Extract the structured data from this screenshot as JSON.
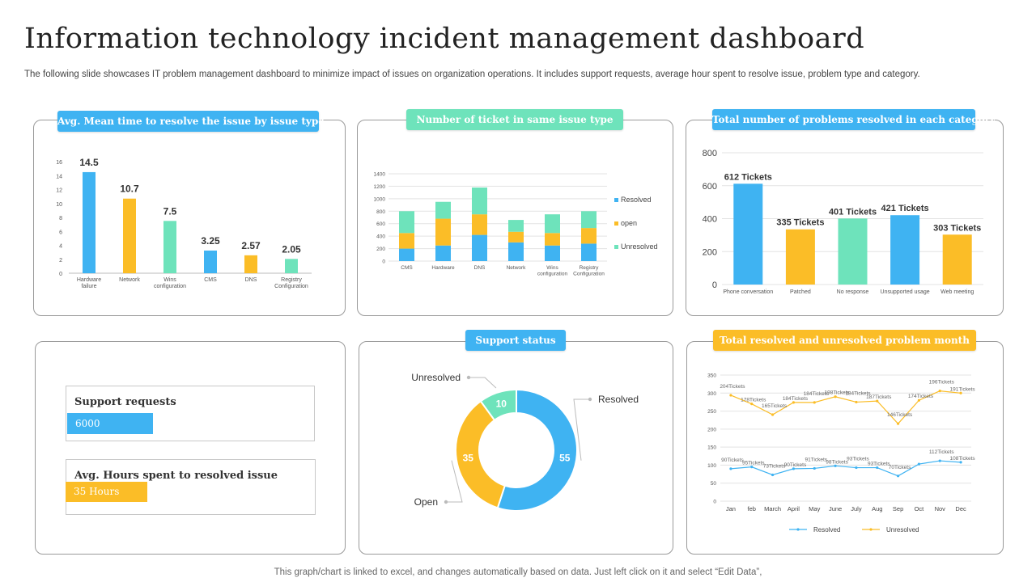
{
  "title": "Information technology incident management dashboard",
  "subtitle": "The following slide showcases IT problem management dashboard to minimize impact of issues on organization operations. It includes support requests, average hour spent to resolve issue, problem type and category.",
  "footer": "This graph/chart is linked to excel,  and changes automatically based on data. Just left click on it and select “Edit Data”,",
  "colors": {
    "blue": "#3fb3f2",
    "orange": "#fbbd27",
    "green": "#6ee3bb"
  },
  "panels": {
    "mean_time": {
      "title": "Avg. Mean time to resolve the issue by issue type"
    },
    "tickets": {
      "title": "Number of ticket in same issue type"
    },
    "problems": {
      "title": "Total number of problems resolved in each category"
    },
    "support": {
      "title": "Support status"
    },
    "monthly": {
      "title": "Total resolved and unresolved problem month"
    }
  },
  "kpis": {
    "support_requests": {
      "label": "Support requests",
      "value": "6000"
    },
    "avg_hours": {
      "label": "Avg. Hours spent to resolved issue",
      "value": "35 Hours"
    }
  },
  "chart_data": [
    {
      "id": "mean_time",
      "type": "bar",
      "title": "Avg. Mean time to resolve the issue by issue type",
      "categories": [
        "Hardware failure",
        "Network",
        "Wins configuration",
        "CMS",
        "DNS",
        "Registry Configuration"
      ],
      "values": [
        14.5,
        10.7,
        7.5,
        3.25,
        2.57,
        2.05
      ],
      "labels": [
        "14.5",
        "10.7",
        "7.5",
        "3.25",
        "2.57",
        "2.05"
      ],
      "bar_colors": [
        "#3fb3f2",
        "#fbbd27",
        "#6ee3bb",
        "#3fb3f2",
        "#fbbd27",
        "#6ee3bb"
      ],
      "yticks": [
        0,
        2,
        4,
        6,
        8,
        10,
        12,
        14,
        16
      ],
      "ylim": [
        0,
        16
      ]
    },
    {
      "id": "tickets",
      "type": "bar",
      "stacked": true,
      "title": "Number of ticket in same issue type",
      "categories": [
        "CMS",
        "Hardware",
        "DNS",
        "Network",
        "Wins configuration",
        "Registry Configuration"
      ],
      "series": [
        {
          "name": "Resolved",
          "values": [
            200,
            250,
            420,
            300,
            250,
            280
          ],
          "color": "#3fb3f2"
        },
        {
          "name": "open",
          "values": [
            250,
            430,
            330,
            170,
            200,
            250
          ],
          "color": "#fbbd27"
        },
        {
          "name": "Unresolved",
          "values": [
            350,
            270,
            430,
            190,
            300,
            270
          ],
          "color": "#6ee3bb"
        }
      ],
      "yticks": [
        0,
        200,
        400,
        600,
        800,
        1000,
        1200,
        1400
      ],
      "ylim": [
        0,
        1400
      ]
    },
    {
      "id": "problems",
      "type": "bar",
      "title": "Total number of problems resolved in each category",
      "categories": [
        "Phone conversation",
        "Patched",
        "No response",
        "Unsupported usage",
        "Web meeting"
      ],
      "values": [
        612,
        335,
        401,
        421,
        303
      ],
      "labels": [
        "612 Tickets",
        "335 Tickets",
        "401 Tickets",
        "421 Tickets",
        "303 Tickets"
      ],
      "bar_colors": [
        "#3fb3f2",
        "#fbbd27",
        "#6ee3bb",
        "#3fb3f2",
        "#fbbd27"
      ],
      "yticks": [
        0,
        200,
        400,
        600,
        800
      ],
      "ylim": [
        0,
        800
      ]
    },
    {
      "id": "support",
      "type": "pie",
      "donut": true,
      "title": "Support status",
      "labels": [
        "Resolved",
        "Open",
        "Unresolved"
      ],
      "values": [
        55,
        35,
        10
      ],
      "colors": [
        "#3fb3f2",
        "#fbbd27",
        "#6ee3bb"
      ]
    },
    {
      "id": "monthly",
      "type": "line",
      "title": "Total resolved and unresolved problem month",
      "x": [
        "Jan",
        "feb",
        "March",
        "April",
        "May",
        "June",
        "July",
        "Aug",
        "Sep",
        "Oct",
        "Nov",
        "Dec"
      ],
      "series": [
        {
          "name": "Resolved",
          "values": [
            90,
            95,
            73,
            90,
            91,
            98,
            93,
            93,
            70,
            103,
            112,
            108
          ],
          "labels": [
            "90Tickets",
            "95Tickets",
            "73Tickets",
            "90Tickets",
            "91Tickets",
            "98Tickets",
            "93Tickets",
            "93Tickets",
            "70Tickets",
            "",
            "112Tickets",
            "108Tickets"
          ],
          "color": "#3fb3f2"
        },
        {
          "name": "Unresolved",
          "values": [
            294,
            270,
            240,
            274,
            274,
            290,
            275,
            278,
            215,
            280,
            306,
            300
          ],
          "labels": [
            "204Tickets",
            "178Tickets",
            "165Tickets",
            "184Tickets",
            "184Tickets",
            "198Tickets",
            "184Tickets",
            "187Tickets",
            "146Tickets",
            "174Tickets",
            "196Tickets",
            "191Tickets"
          ],
          "color": "#fbbd27"
        }
      ],
      "yticks": [
        0,
        50,
        100,
        150,
        200,
        250,
        300,
        350
      ],
      "ylim": [
        0,
        350
      ]
    }
  ]
}
